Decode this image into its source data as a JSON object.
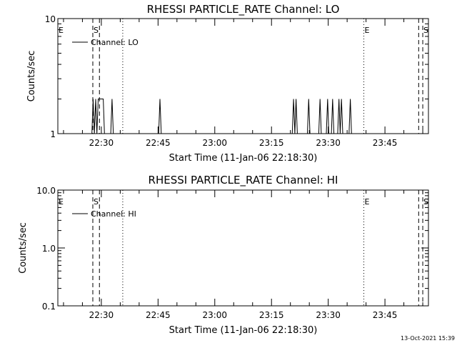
{
  "footer": {
    "timestamp": "13-Oct-2021 15:39"
  },
  "colors": {
    "foreground": "#000000",
    "background": "#ffffff"
  },
  "chart_data": [
    {
      "type": "line",
      "title": "RHESSI PARTICLE_RATE Channel: LO",
      "xlabel": "Start Time (11-Jan-06 22:18:30)",
      "ylabel": "Counts/sec",
      "x_range": [
        "22:18:30",
        "23:56:30"
      ],
      "x_ticks": [
        "22:30",
        "22:45",
        "23:00",
        "23:15",
        "23:30",
        "23:45"
      ],
      "y_scale": "log",
      "ylim": [
        1,
        10
      ],
      "y_ticks": [
        "1",
        "10"
      ],
      "legend": {
        "label": "Channel: LO",
        "position": "top-left"
      },
      "series": [
        {
          "name": "Channel: LO",
          "points": [
            [
              "22:18:30",
              1
            ],
            [
              "22:27:30",
              1
            ],
            [
              "22:27:50",
              2
            ],
            [
              "22:28:10",
              1
            ],
            [
              "22:28:30",
              2
            ],
            [
              "22:28:50",
              1
            ],
            [
              "22:29:10",
              2
            ],
            [
              "22:30:30",
              2
            ],
            [
              "22:30:50",
              1
            ],
            [
              "22:32:30",
              1
            ],
            [
              "22:32:50",
              2
            ],
            [
              "22:33:10",
              1
            ],
            [
              "22:45:10",
              1
            ],
            [
              "22:45:30",
              2
            ],
            [
              "22:45:50",
              1
            ],
            [
              "23:20:30",
              1
            ],
            [
              "23:20:50",
              2
            ],
            [
              "23:21:10",
              1
            ],
            [
              "23:21:30",
              2
            ],
            [
              "23:21:50",
              1
            ],
            [
              "23:24:30",
              1
            ],
            [
              "23:24:50",
              2
            ],
            [
              "23:25:10",
              1
            ],
            [
              "23:27:30",
              1
            ],
            [
              "23:27:50",
              2
            ],
            [
              "23:28:10",
              1
            ],
            [
              "23:29:30",
              1
            ],
            [
              "23:29:50",
              2
            ],
            [
              "23:30:10",
              1
            ],
            [
              "23:30:50",
              1
            ],
            [
              "23:31:10",
              2
            ],
            [
              "23:31:30",
              1
            ],
            [
              "23:32:30",
              1
            ],
            [
              "23:32:50",
              2
            ],
            [
              "23:33:10",
              1
            ],
            [
              "23:33:30",
              2
            ],
            [
              "23:33:50",
              1
            ],
            [
              "23:35:30",
              1
            ],
            [
              "23:35:50",
              2
            ],
            [
              "23:36:10",
              1
            ],
            [
              "23:56:30",
              1
            ]
          ]
        }
      ],
      "markers": [
        {
          "label": "E",
          "time": "22:18:30",
          "style": "none"
        },
        {
          "label": "S",
          "time": "22:27:45",
          "style": "dashed"
        },
        {
          "label": "",
          "time": "22:29:30",
          "style": "dashed"
        },
        {
          "label": "",
          "time": "22:35:40",
          "style": "dotted"
        },
        {
          "label": "E",
          "time": "23:39:25",
          "style": "dotted"
        },
        {
          "label": "",
          "time": "23:53:55",
          "style": "dashed"
        },
        {
          "label": "S",
          "time": "23:55:00",
          "style": "dashed"
        }
      ]
    },
    {
      "type": "line",
      "title": "RHESSI PARTICLE_RATE Channel: HI",
      "xlabel": "Start Time (11-Jan-06 22:18:30)",
      "ylabel": "Counts/sec",
      "x_range": [
        "22:18:30",
        "23:56:30"
      ],
      "x_ticks": [
        "22:30",
        "22:45",
        "23:00",
        "23:15",
        "23:30",
        "23:45"
      ],
      "y_scale": "log",
      "ylim": [
        0.1,
        10
      ],
      "y_ticks": [
        "0.1",
        "1.0",
        "10.0"
      ],
      "legend": {
        "label": "Channel: HI",
        "position": "top-left"
      },
      "series": [
        {
          "name": "Channel: HI",
          "points": []
        }
      ],
      "markers": [
        {
          "label": "E",
          "time": "22:18:30",
          "style": "none"
        },
        {
          "label": "S",
          "time": "22:27:45",
          "style": "dashed"
        },
        {
          "label": "",
          "time": "22:29:30",
          "style": "dashed"
        },
        {
          "label": "",
          "time": "22:35:40",
          "style": "dotted"
        },
        {
          "label": "E",
          "time": "23:39:25",
          "style": "dotted"
        },
        {
          "label": "",
          "time": "23:53:55",
          "style": "dashed"
        },
        {
          "label": "S",
          "time": "23:55:00",
          "style": "dashed"
        }
      ]
    }
  ]
}
